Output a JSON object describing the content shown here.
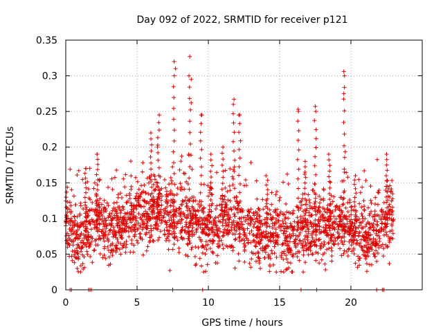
{
  "chart_data": {
    "type": "scatter",
    "title": "Day 092 of 2022, SRMTID for receiver p121",
    "xlabel": "GPS time / hours",
    "ylabel": "SRMTID / TECUs",
    "xlim": [
      0,
      25
    ],
    "ylim": [
      0,
      0.35
    ],
    "xticks": [
      0,
      5,
      10,
      15,
      20
    ],
    "xtick_labels": [
      "0",
      "5",
      "10",
      "15",
      "20"
    ],
    "yticks": [
      0,
      0.05,
      0.1,
      0.15,
      0.2,
      0.25,
      0.3,
      0.35
    ],
    "ytick_labels": [
      "0",
      "0.05",
      "0.1",
      "0.15",
      "0.2",
      "0.25",
      "0.3",
      "0.35"
    ],
    "grid": true,
    "marker": "+",
    "series": [
      {
        "name": "SRMTID",
        "color": "#e00000",
        "x_range": [
          0,
          23
        ],
        "notable_points": [
          {
            "x": 7.6,
            "y": 0.32
          },
          {
            "x": 7.7,
            "y": 0.31
          },
          {
            "x": 8.7,
            "y": 0.327
          },
          {
            "x": 8.8,
            "y": 0.295
          },
          {
            "x": 8.8,
            "y": 0.262
          },
          {
            "x": 11.8,
            "y": 0.267
          },
          {
            "x": 12.2,
            "y": 0.245
          },
          {
            "x": 16.3,
            "y": 0.253
          },
          {
            "x": 17.5,
            "y": 0.257
          },
          {
            "x": 19.5,
            "y": 0.306
          },
          {
            "x": 19.5,
            "y": 0.275
          },
          {
            "x": 1.4,
            "y": 0.17
          },
          {
            "x": 2.2,
            "y": 0.19
          },
          {
            "x": 9.5,
            "y": 0.245
          },
          {
            "x": 7.3,
            "y": 0.027
          },
          {
            "x": 15.9,
            "y": 0.025
          }
        ],
        "zero_points_x": [
          0.3,
          0.4,
          1.6,
          1.7,
          1.8,
          7.5,
          9.6,
          16.5,
          17.6,
          21.8,
          22.2,
          22.3
        ]
      }
    ]
  }
}
